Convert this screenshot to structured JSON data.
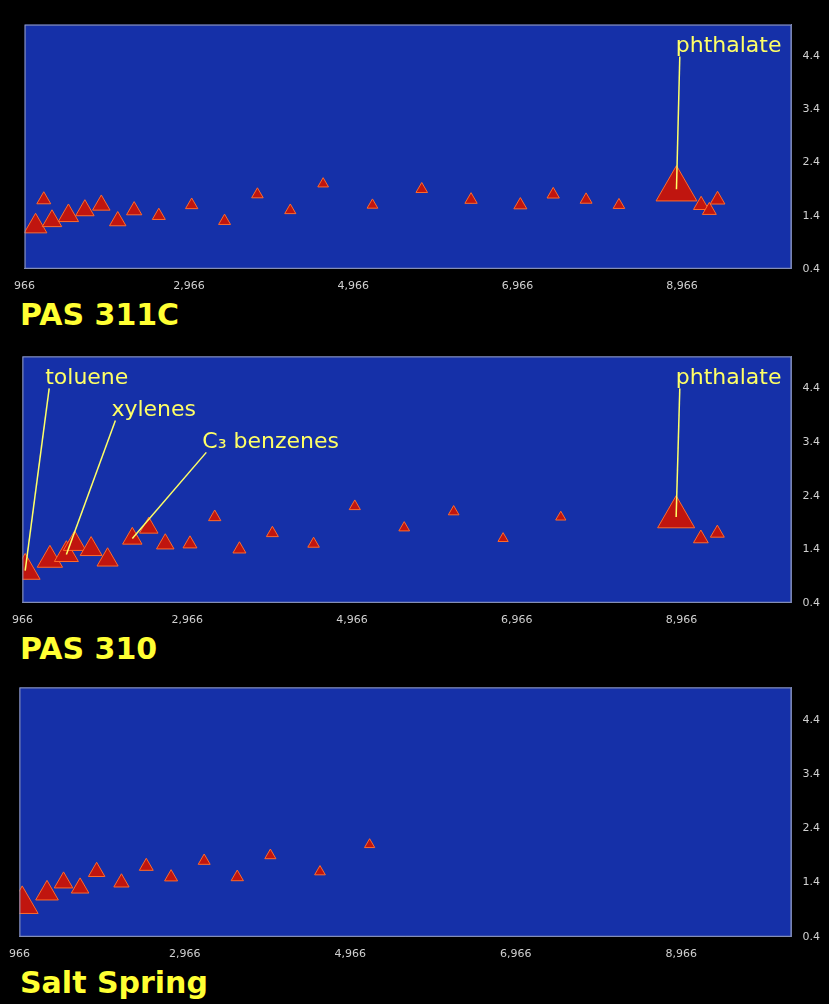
{
  "chart_data": [
    {
      "type": "scatter",
      "title": "PAS 311C",
      "grid": false,
      "color": "#c0150f",
      "marker": "triangle",
      "xlim": [
        966,
        10300
      ],
      "xticks": [
        966,
        2966,
        4966,
        6966,
        8966
      ],
      "ylim": [
        0.4,
        5.0
      ],
      "yticks": [
        0.4,
        1.4,
        2.4,
        3.4,
        4.4
      ],
      "x": [
        1100,
        1300,
        1500,
        1700,
        1900,
        2100,
        2300,
        1200,
        2600,
        3000,
        3400,
        3800,
        4200,
        4600,
        5200,
        5800,
        6400,
        7000,
        7400,
        7800,
        8200,
        8900,
        9200,
        9400,
        9300
      ],
      "y": [
        1.2,
        1.3,
        1.4,
        1.5,
        1.6,
        1.3,
        1.5,
        1.7,
        1.4,
        1.6,
        1.3,
        1.8,
        1.5,
        2.0,
        1.6,
        1.9,
        1.7,
        1.6,
        1.8,
        1.7,
        1.6,
        1.9,
        1.6,
        1.7,
        1.5
      ],
      "heights": [
        60,
        40,
        45,
        35,
        30,
        25,
        20,
        15,
        12,
        10,
        9,
        8,
        7,
        6,
        6,
        8,
        10,
        12,
        10,
        9,
        8,
        250,
        20,
        18,
        15
      ],
      "annotations": [
        {
          "text": "phthalate",
          "x": 8900,
          "y": 1.9
        }
      ]
    },
    {
      "type": "scatter",
      "title": "PAS 310",
      "grid": false,
      "color": "#c0150f",
      "marker": "triangle",
      "xlim": [
        966,
        10300
      ],
      "xticks": [
        966,
        2966,
        4966,
        6966,
        8966
      ],
      "ylim": [
        0.4,
        5.0
      ],
      "yticks": [
        0.4,
        1.4,
        2.4,
        3.4,
        4.4
      ],
      "x": [
        1000,
        1300,
        1500,
        1600,
        1800,
        2000,
        2300,
        2500,
        2700,
        3000,
        3300,
        3600,
        4000,
        4500,
        5000,
        5600,
        6200,
        6800,
        7500,
        8900,
        9200,
        9400
      ],
      "y": [
        1.0,
        1.2,
        1.3,
        1.5,
        1.4,
        1.2,
        1.6,
        1.8,
        1.5,
        1.5,
        2.0,
        1.4,
        1.7,
        1.5,
        2.2,
        1.8,
        2.1,
        1.6,
        2.0,
        2.0,
        1.6,
        1.7
      ],
      "heights": [
        120,
        80,
        70,
        60,
        55,
        50,
        40,
        35,
        30,
        15,
        10,
        12,
        9,
        8,
        7,
        6,
        6,
        5,
        5,
        200,
        18,
        15
      ],
      "annotations": [
        {
          "text": "toluene",
          "x": 1000,
          "y": 1.0
        },
        {
          "text": "xylenes",
          "x": 1500,
          "y": 1.3
        },
        {
          "text": "C₃ benzenes",
          "x": 2300,
          "y": 1.6
        },
        {
          "text": "phthalate",
          "x": 8900,
          "y": 2.0
        }
      ]
    },
    {
      "type": "scatter",
      "title": "Salt Spring",
      "grid": false,
      "color": "#c0150f",
      "marker": "triangle",
      "xlim": [
        966,
        10300
      ],
      "xticks": [
        966,
        2966,
        4966,
        6966,
        8966
      ],
      "ylim": [
        0.4,
        5.0
      ],
      "yticks": [
        0.4,
        1.4,
        2.4,
        3.4,
        4.4
      ],
      "x": [
        1000,
        1300,
        1500,
        1700,
        1900,
        2200,
        2500,
        2800,
        3200,
        3600,
        4000,
        4600,
        5200
      ],
      "y": [
        1.0,
        1.2,
        1.4,
        1.3,
        1.6,
        1.4,
        1.7,
        1.5,
        1.8,
        1.5,
        1.9,
        1.6,
        2.1
      ],
      "heights": [
        140,
        60,
        35,
        30,
        25,
        20,
        15,
        12,
        9,
        10,
        7,
        6,
        5
      ],
      "annotations": []
    }
  ]
}
